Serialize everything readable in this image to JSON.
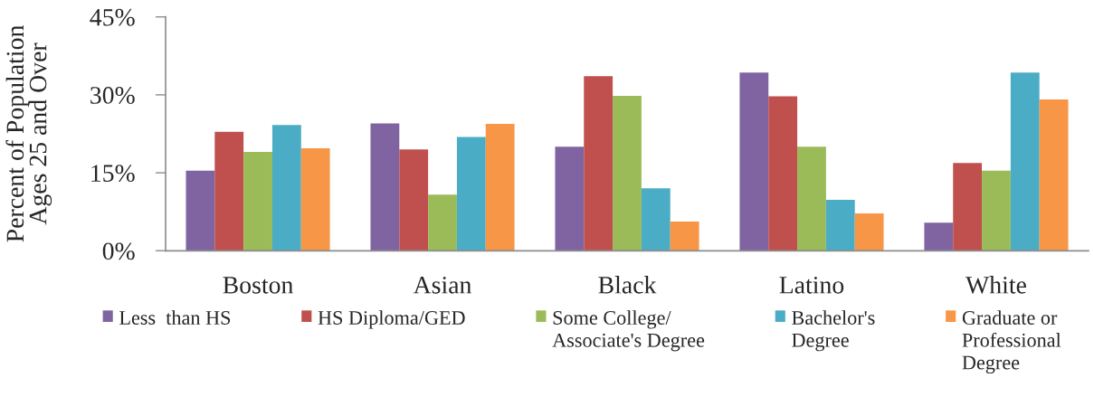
{
  "chart_data": {
    "type": "bar",
    "ylabel": "Percent of Population\nAges 25 and Over",
    "categories": [
      "Boston",
      "Asian",
      "Black",
      "Latino",
      "White"
    ],
    "series": [
      {
        "name": "Less  than HS",
        "color": "#8064a2",
        "values": [
          15.4,
          24.5,
          20.0,
          34.3,
          5.4
        ]
      },
      {
        "name": "HS Diploma/GED",
        "color": "#c0504d",
        "values": [
          22.9,
          19.5,
          33.6,
          29.7,
          16.9
        ]
      },
      {
        "name": "Some College/\nAssociate's Degree",
        "color": "#9bbb59",
        "values": [
          19.0,
          10.8,
          29.8,
          20.0,
          15.4
        ]
      },
      {
        "name": "Bachelor's\nDegree",
        "color": "#4bacc6",
        "values": [
          24.2,
          21.9,
          12.0,
          9.8,
          34.3
        ]
      },
      {
        "name": "Graduate or\nProfessional\nDegree",
        "color": "#f79646",
        "values": [
          19.7,
          24.4,
          5.6,
          7.2,
          29.1
        ]
      }
    ],
    "ylim": [
      0,
      45
    ],
    "yticks": [
      {
        "value": 0,
        "label": "0%"
      },
      {
        "value": 15,
        "label": "15%"
      },
      {
        "value": 30,
        "label": "30%"
      },
      {
        "value": 45,
        "label": "45%"
      }
    ],
    "legend": "bottom"
  }
}
